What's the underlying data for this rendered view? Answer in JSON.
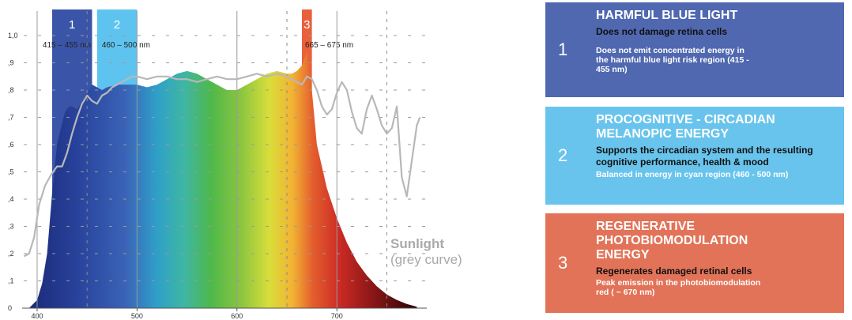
{
  "chart_data": {
    "type": "area",
    "xlabel": "",
    "ylabel": "",
    "xlim": [
      385,
      790
    ],
    "ylim": [
      0,
      1.0
    ],
    "x_ticks": [
      "400",
      "500",
      "600",
      "700"
    ],
    "y_ticks": [
      "0",
      ",1",
      ",2",
      ",3",
      ",4",
      ",5",
      ",6",
      ",7",
      ",8",
      ",9",
      "1,0"
    ],
    "dashed_vertical_lines": [
      450,
      650,
      750
    ],
    "solid_vertical_lines": [
      400,
      500,
      600,
      700
    ],
    "bands": [
      {
        "id": "1",
        "label": "415 – 455 nm",
        "range": [
          415,
          455
        ],
        "color": "#3a55a8"
      },
      {
        "id": "2",
        "label": "460 – 500 nm",
        "range": [
          460,
          500
        ],
        "color": "#5ec4ef"
      },
      {
        "id": "3",
        "label": "665 – 675 nm",
        "range": [
          665,
          675
        ],
        "color": "#e8603c"
      }
    ],
    "series": [
      {
        "type": "area",
        "colored_by_wavelength": true,
        "x": [
          392,
          400,
          405,
          410,
          415,
          420,
          425,
          428,
          432,
          435,
          440,
          445,
          450,
          455,
          460,
          465,
          470,
          480,
          490,
          500,
          510,
          520,
          530,
          540,
          550,
          560,
          570,
          580,
          590,
          600,
          610,
          620,
          630,
          640,
          650,
          655,
          660,
          665,
          670,
          675,
          680,
          690,
          700,
          710,
          720,
          730,
          740,
          750,
          760,
          770,
          780
        ],
        "y": [
          0.0,
          0.03,
          0.09,
          0.2,
          0.42,
          0.6,
          0.68,
          0.72,
          0.74,
          0.74,
          0.73,
          0.76,
          0.79,
          0.82,
          0.81,
          0.8,
          0.81,
          0.82,
          0.82,
          0.82,
          0.81,
          0.82,
          0.84,
          0.86,
          0.87,
          0.86,
          0.84,
          0.82,
          0.8,
          0.8,
          0.82,
          0.84,
          0.86,
          0.87,
          0.86,
          0.86,
          0.87,
          0.89,
          0.94,
          0.8,
          0.6,
          0.44,
          0.33,
          0.24,
          0.17,
          0.12,
          0.08,
          0.05,
          0.03,
          0.015,
          0.005
        ]
      },
      {
        "type": "line",
        "color": "#b8b8b8",
        "x": [
          387,
          392,
          397,
          402,
          408,
          414,
          420,
          425,
          430,
          435,
          440,
          445,
          450,
          455,
          460,
          465,
          470,
          475,
          480,
          485,
          490,
          495,
          500,
          510,
          520,
          530,
          540,
          550,
          560,
          570,
          580,
          590,
          600,
          610,
          620,
          630,
          640,
          650,
          660,
          665,
          670,
          675,
          680,
          685,
          690,
          695,
          700,
          705,
          710,
          715,
          720,
          725,
          730,
          735,
          740,
          745,
          750,
          755,
          760,
          765,
          770,
          775,
          780,
          783
        ],
        "y": [
          0.19,
          0.2,
          0.26,
          0.38,
          0.45,
          0.49,
          0.52,
          0.52,
          0.57,
          0.64,
          0.7,
          0.75,
          0.78,
          0.76,
          0.75,
          0.78,
          0.79,
          0.81,
          0.82,
          0.83,
          0.84,
          0.85,
          0.85,
          0.84,
          0.85,
          0.85,
          0.84,
          0.84,
          0.83,
          0.84,
          0.85,
          0.84,
          0.84,
          0.85,
          0.86,
          0.85,
          0.86,
          0.85,
          0.83,
          0.82,
          0.85,
          0.84,
          0.8,
          0.74,
          0.71,
          0.73,
          0.79,
          0.83,
          0.8,
          0.72,
          0.66,
          0.64,
          0.73,
          0.78,
          0.73,
          0.67,
          0.64,
          0.66,
          0.74,
          0.48,
          0.41,
          0.54,
          0.67,
          0.7
        ]
      }
    ],
    "annotations": {
      "sunlight_title": "Sunlight",
      "sunlight_sub": "(grey curve)"
    }
  },
  "panels": [
    {
      "number": "1",
      "title": "HARMFUL BLUE LIGHT",
      "subtitle": "Does not damage retina cells",
      "desc": "Does not emit concentrated energy in the harmful blue light risk region (415 - 455 nm)",
      "color": "#5068b0"
    },
    {
      "number": "2",
      "title": "PROCOGNITIVE - CIRCADIAN MELANOPIC ENERGY",
      "subtitle": "Supports the circadian system and the resulting cognitive performance, health & mood",
      "desc": "Balanced in energy in cyan region (460 - 500 nm)",
      "color": "#68c4ec"
    },
    {
      "number": "3",
      "title": "REGENERATIVE PHOTOBIOMODULATION ENERGY",
      "subtitle": "Regenerates damaged retinal cells",
      "desc": "Peak emission in the photobiomodulation red ( ~ 670 nm)",
      "color": "#e27358"
    }
  ]
}
